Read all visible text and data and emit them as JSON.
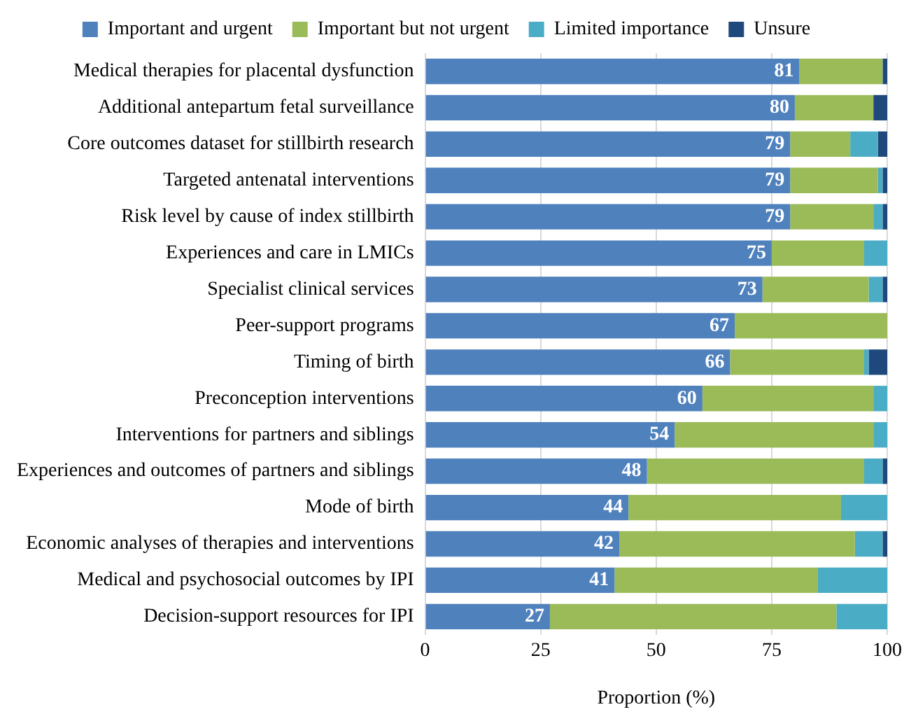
{
  "chart_data": {
    "type": "bar",
    "orientation": "horizontal",
    "stacked": true,
    "xlabel": "Proportion (%)",
    "categories": [
      "Medical therapies for placental dysfunction",
      "Additional antepartum fetal surveillance",
      "Core outcomes dataset for stillbirth research",
      "Targeted antenatal interventions",
      "Risk level by cause of index stillbirth",
      "Experiences and care in LMICs",
      "Specialist clinical services",
      "Peer-support programs",
      "Timing of birth",
      "Preconception interventions",
      "Interventions for partners and siblings",
      "Experiences and outcomes of partners and siblings",
      "Mode of birth",
      "Economic analyses of therapies and interventions",
      "Medical and psychosocial outcomes by IPI",
      "Decision-support resources for IPI"
    ],
    "series": [
      {
        "name": "Important and urgent",
        "color": "#4f81bd",
        "values": [
          81,
          80,
          79,
          79,
          79,
          75,
          73,
          67,
          66,
          60,
          54,
          48,
          44,
          42,
          41,
          27
        ],
        "value_labels": [
          "81",
          "80",
          "79",
          "79",
          "79",
          "75",
          "73",
          "67",
          "66",
          "60",
          "54",
          "48",
          "44",
          "42",
          "41",
          "27"
        ]
      },
      {
        "name": "Important but not urgent",
        "color": "#9bbb59",
        "values": [
          18,
          17,
          13,
          19,
          18,
          20,
          23,
          33,
          29,
          37,
          43,
          47,
          46,
          51,
          44,
          62
        ]
      },
      {
        "name": "Limited importance",
        "color": "#4bacc6",
        "values": [
          0,
          0,
          6,
          1,
          2,
          5,
          3,
          0,
          1,
          3,
          3,
          4,
          10,
          6,
          15,
          11
        ]
      },
      {
        "name": "Unsure",
        "color": "#1f497d",
        "values": [
          1,
          3,
          2,
          1,
          1,
          0,
          1,
          0,
          4,
          0,
          0,
          1,
          0,
          1,
          0,
          0
        ]
      }
    ],
    "xlim": [
      0,
      100
    ],
    "xticks": [
      0,
      25,
      50,
      75,
      100
    ],
    "grid": "x",
    "legend": "top"
  }
}
